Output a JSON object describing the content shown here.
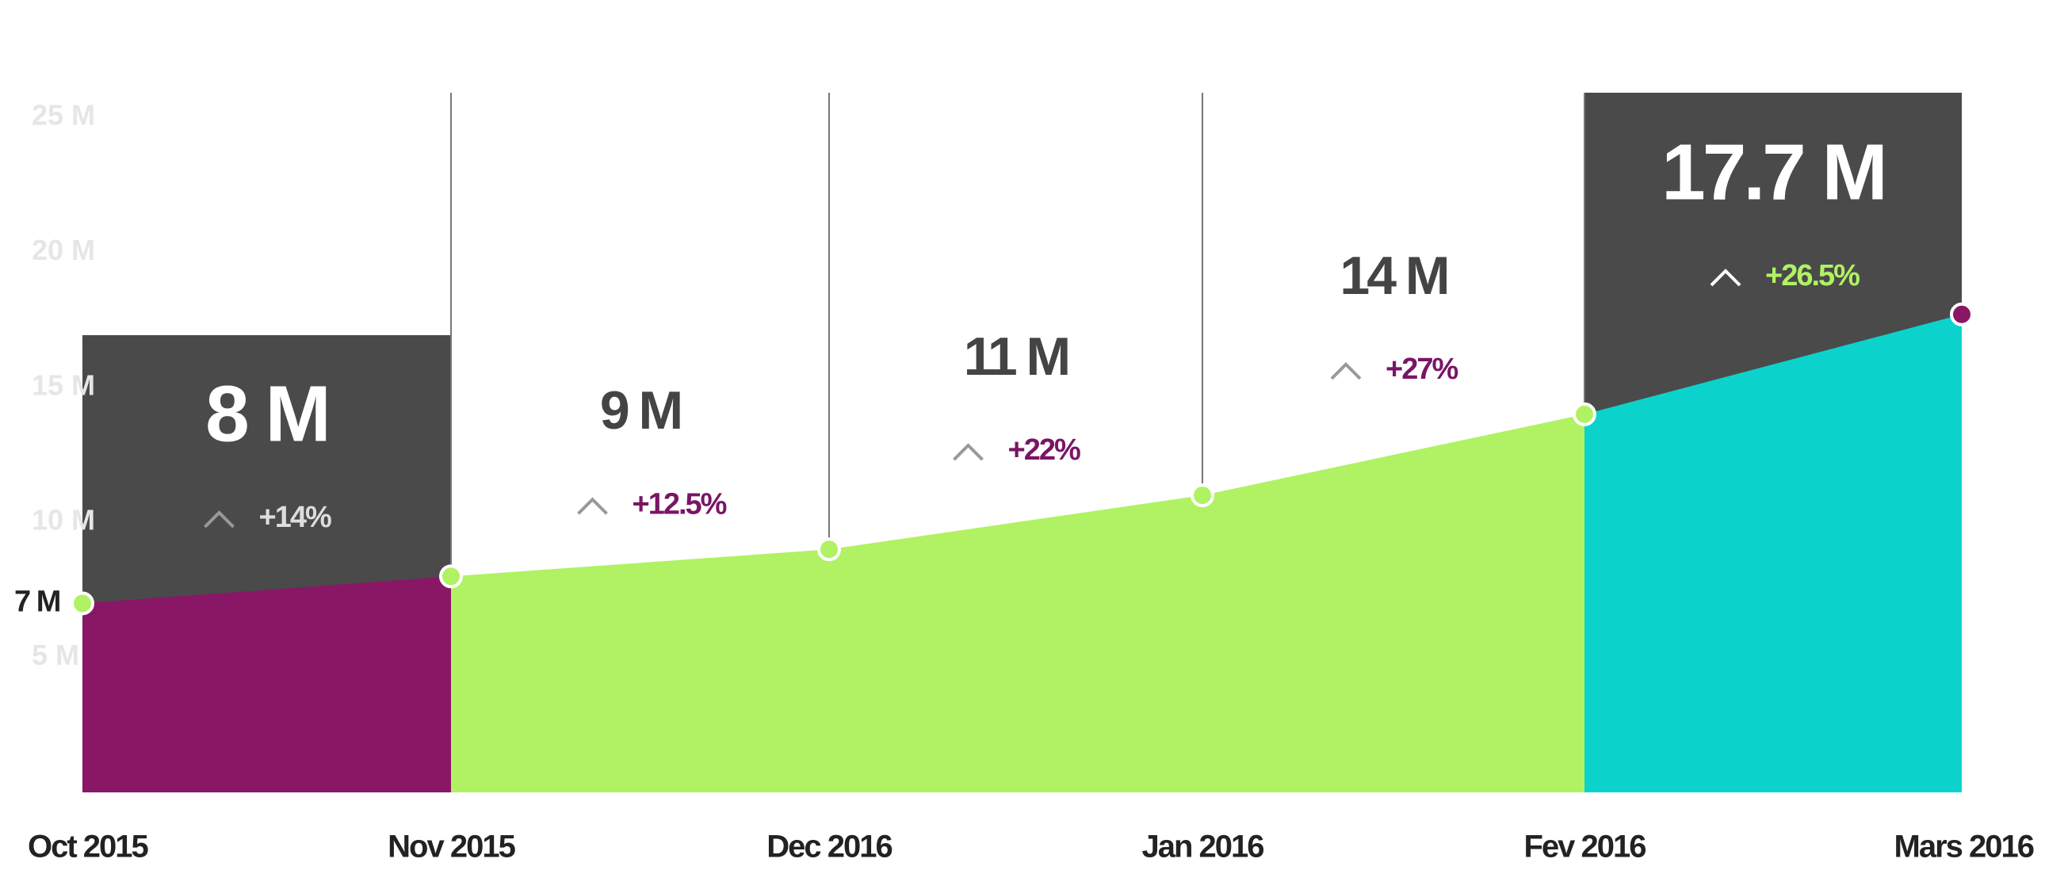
{
  "chart_data": {
    "type": "area",
    "categories": [
      "Oct 2015",
      "Nov 2015",
      "Dec 2016",
      "Jan 2016",
      "Fev 2016",
      "Mars 2016"
    ],
    "values": [
      7,
      8,
      9,
      11,
      14,
      17.7
    ],
    "value_labels": [
      "7 M",
      "8 M",
      "9 M",
      "11 M",
      "14 M",
      "17.7 M"
    ],
    "change_labels": [
      "+14%",
      "+12.5%",
      "+22%",
      "+27%",
      "+26.5%"
    ],
    "segment_colors": [
      "#891766",
      "#b0f263",
      "#b0f263",
      "#b0f263",
      "#0bd3cc"
    ],
    "point_colors": [
      "#b0f263",
      "#b0f263",
      "#b0f263",
      "#b0f263",
      "#b0f263",
      "#891766"
    ],
    "highlight_segments": [
      0,
      4
    ],
    "ylim": [
      0,
      25
    ],
    "yticks": [
      {
        "value": 5,
        "label": "5 M"
      },
      {
        "value": 10,
        "label": "10 M"
      },
      {
        "value": 15,
        "label": "15 M"
      },
      {
        "value": 20,
        "label": "20 M"
      },
      {
        "value": 25,
        "label": "25 M"
      }
    ]
  }
}
